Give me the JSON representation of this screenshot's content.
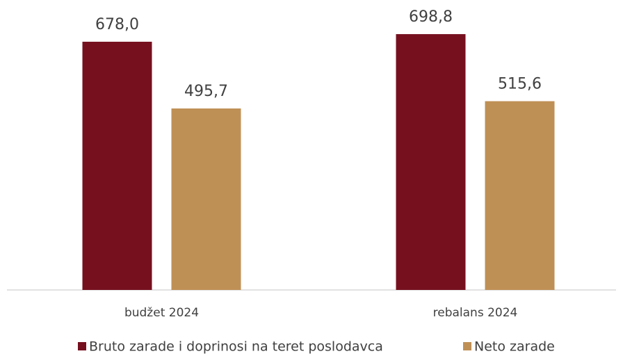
{
  "chart_data": {
    "type": "bar",
    "categories": [
      "budžet 2024",
      "rebalans 2024"
    ],
    "series": [
      {
        "name": "Bruto zarade i doprinosi na teret poslodavca",
        "color": "#76101f",
        "values": [
          678.0,
          698.8
        ],
        "value_labels": [
          "678,0",
          "698,8"
        ]
      },
      {
        "name": "Neto zarade",
        "color": "#bf9055",
        "values": [
          495.7,
          515.6
        ],
        "value_labels": [
          "495,7",
          "515,6"
        ]
      }
    ],
    "ylim": [
      0,
      792
    ],
    "grid": false,
    "legend": "bottom"
  }
}
